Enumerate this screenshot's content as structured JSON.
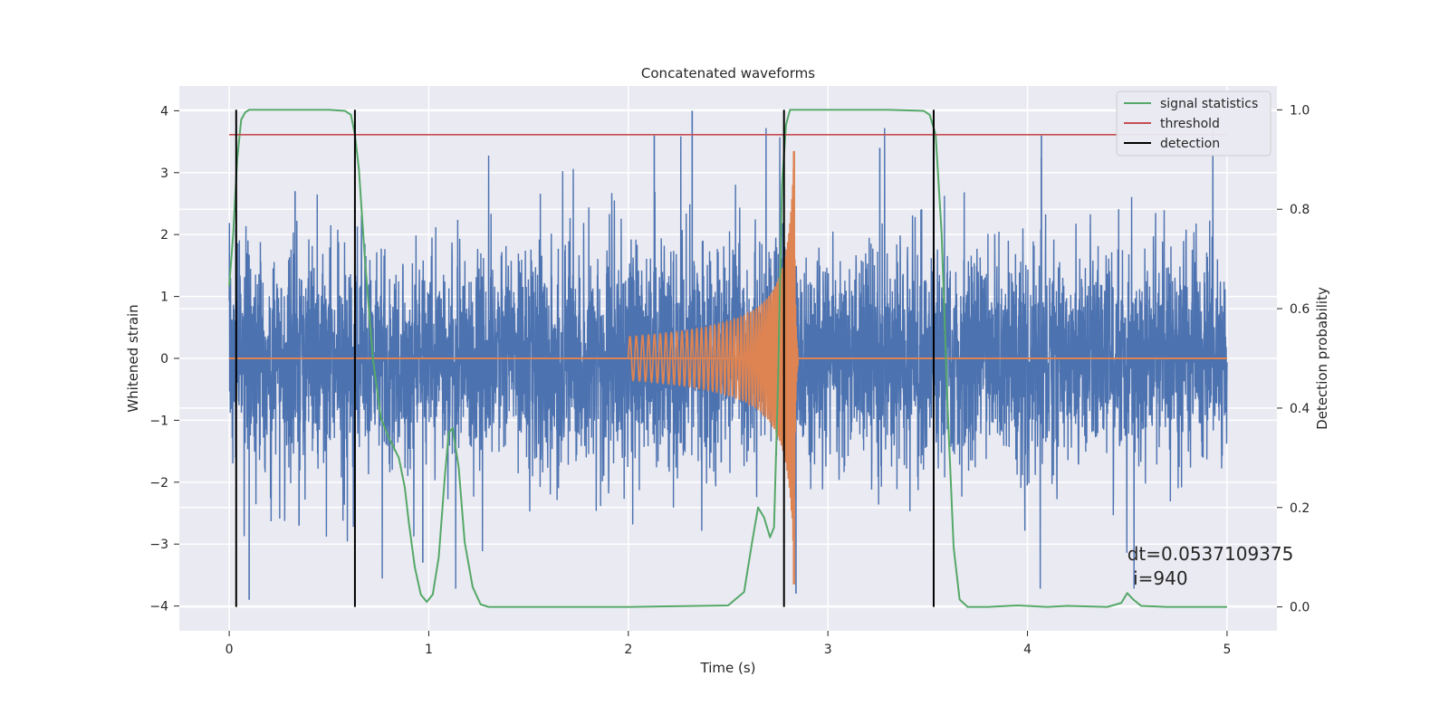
{
  "chart_data": {
    "type": "line",
    "title": "Concatenated waveforms",
    "xlabel": "Time (s)",
    "ylabel": "Whitened strain",
    "ylabel_right": "Detection probability",
    "xlim": [
      -0.25,
      5.25
    ],
    "ylim": [
      -4.4,
      4.4
    ],
    "ylim_right": [
      -0.048,
      1.048
    ],
    "x_ticks": [
      0,
      1,
      2,
      3,
      4,
      5
    ],
    "x_tick_labels": [
      "0",
      "1",
      "2",
      "3",
      "4",
      "5"
    ],
    "y_ticks": [
      -4,
      -3,
      -2,
      -1,
      0,
      1,
      2,
      3,
      4
    ],
    "y_tick_labels": [
      "−4",
      "−3",
      "−2",
      "−1",
      "0",
      "1",
      "2",
      "3",
      "4"
    ],
    "y_right_ticks": [
      0.0,
      0.2,
      0.4,
      0.6,
      0.8,
      1.0
    ],
    "y_right_tick_labels": [
      "0.0",
      "0.2",
      "0.4",
      "0.6",
      "0.8",
      "1.0"
    ],
    "grid": true,
    "legend_position": "top-right",
    "legend": [
      {
        "label": "signal statistics",
        "color": "#55a868"
      },
      {
        "label": "threshold",
        "color": "#c44e52"
      },
      {
        "label": "detection",
        "color": "#000000"
      }
    ],
    "series": [
      {
        "name": "signal statistics",
        "axis": "right",
        "color": "#55a868",
        "x": [
          0.0,
          0.02,
          0.04,
          0.06,
          0.08,
          0.1,
          0.15,
          0.3,
          0.5,
          0.58,
          0.61,
          0.63,
          0.65,
          0.68,
          0.72,
          0.76,
          0.8,
          0.85,
          0.88,
          0.9,
          0.93,
          0.96,
          0.99,
          1.02,
          1.05,
          1.08,
          1.1,
          1.12,
          1.15,
          1.18,
          1.22,
          1.26,
          1.3,
          1.5,
          2.0,
          2.5,
          2.58,
          2.62,
          2.65,
          2.68,
          2.71,
          2.73,
          2.75,
          2.77,
          2.79,
          2.81,
          2.83,
          2.86,
          3.0,
          3.3,
          3.48,
          3.51,
          3.54,
          3.57,
          3.6,
          3.63,
          3.66,
          3.7,
          3.8,
          3.95,
          4.1,
          4.2,
          4.4,
          4.47,
          4.5,
          4.53,
          4.57,
          4.7,
          5.0
        ],
        "values": [
          0.645,
          0.75,
          0.9,
          0.98,
          0.995,
          1.0,
          1.0,
          1.0,
          1.0,
          0.998,
          0.99,
          0.95,
          0.88,
          0.7,
          0.5,
          0.38,
          0.34,
          0.3,
          0.24,
          0.17,
          0.08,
          0.025,
          0.01,
          0.025,
          0.1,
          0.26,
          0.35,
          0.36,
          0.28,
          0.13,
          0.04,
          0.005,
          0.0,
          0.0,
          0.0,
          0.003,
          0.03,
          0.13,
          0.2,
          0.18,
          0.14,
          0.16,
          0.45,
          0.85,
          0.97,
          1.0,
          1.0,
          1.0,
          1.0,
          1.0,
          0.998,
          0.99,
          0.95,
          0.75,
          0.4,
          0.12,
          0.015,
          0.0,
          0.0,
          0.003,
          0.0,
          0.002,
          0.0,
          0.008,
          0.028,
          0.015,
          0.002,
          0.0,
          0.0
        ]
      },
      {
        "name": "threshold",
        "axis": "right",
        "color": "#c44e52",
        "x": [
          0,
          5
        ],
        "values": [
          0.95,
          0.95
        ]
      },
      {
        "name": "whitened strain",
        "axis": "left",
        "color": "#4c72b0",
        "x_range": [
          0,
          5
        ],
        "amplitude_envelope": 2.4,
        "peak_values": [
          -3.9,
          4.0,
          -3.3,
          3.6,
          3.95,
          -3.8,
          3.6,
          3.4,
          2.7,
          -2.7
        ]
      },
      {
        "name": "injected waveform",
        "axis": "left",
        "color": "#dd8452",
        "x": [
          2.0,
          2.85
        ],
        "chirp_amplitude_start": 0.35,
        "chirp_peak": [
          3.35,
          -3.65
        ],
        "chirp_peak_time": 2.83
      }
    ],
    "detections": [
      0.035,
      0.63,
      2.78,
      3.53
    ],
    "annotation": {
      "text_line1": "dt=0.0537109375",
      "text_line2": " i=940",
      "x": 4.5,
      "y": -3.3
    }
  }
}
